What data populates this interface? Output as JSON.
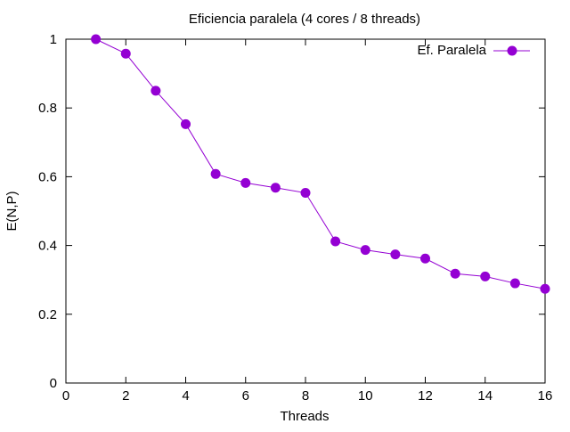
{
  "chart_data": {
    "type": "line",
    "title": "Eficiencia paralela (4 cores / 8 threads)",
    "xlabel": "Threads",
    "ylabel": "E(N,P)",
    "xlim": [
      0,
      16
    ],
    "ylim": [
      0,
      1
    ],
    "xticks": [
      0,
      2,
      4,
      6,
      8,
      10,
      12,
      14,
      16
    ],
    "yticks": [
      0,
      0.2,
      0.4,
      0.6,
      0.8,
      1
    ],
    "xtick_labels": [
      "0",
      "2",
      "4",
      "6",
      "8",
      "10",
      "12",
      "14",
      "16"
    ],
    "ytick_labels": [
      "0",
      "0.2",
      "0.4",
      "0.6",
      "0.8",
      "1"
    ],
    "grid": false,
    "legend_position": "top-right",
    "series": [
      {
        "name": "Ef. Paralela",
        "color": "#9400d3",
        "marker": "circle",
        "x": [
          1,
          2,
          3,
          4,
          5,
          6,
          7,
          8,
          9,
          10,
          11,
          12,
          13,
          14,
          15,
          16
        ],
        "y": [
          1.0,
          0.958,
          0.85,
          0.753,
          0.608,
          0.582,
          0.568,
          0.553,
          0.412,
          0.387,
          0.374,
          0.362,
          0.318,
          0.31,
          0.29,
          0.274
        ]
      }
    ]
  }
}
